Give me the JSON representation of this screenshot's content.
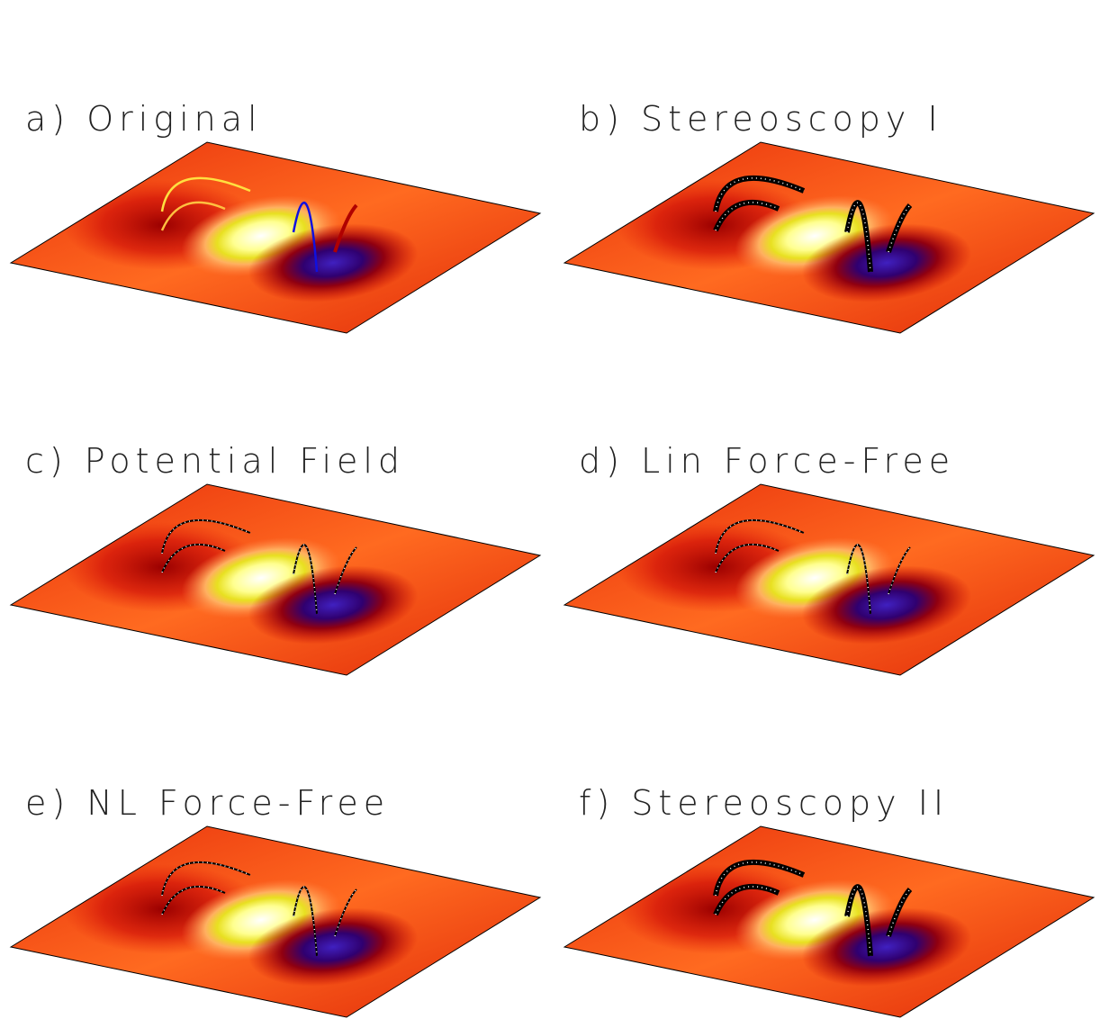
{
  "panels": [
    {
      "label": "a) Original"
    },
    {
      "label": "b) Stereoscopy I"
    },
    {
      "label": "c) Potential Field"
    },
    {
      "label": "d) Lin Force-Free"
    },
    {
      "label": "e) NL Force-Free"
    },
    {
      "label": "f) Stereoscopy II"
    }
  ]
}
